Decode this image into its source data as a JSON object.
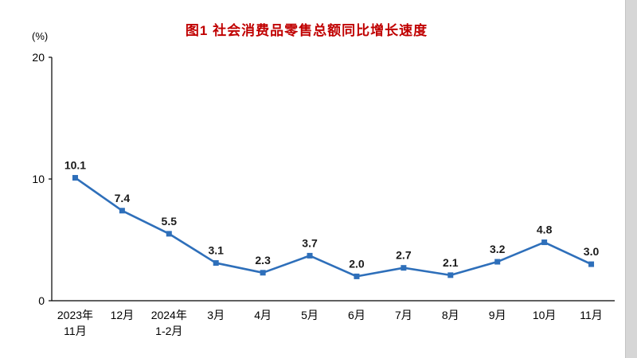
{
  "chart_data": {
    "type": "line",
    "title": "图1  社会消费品零售总额同比增长速度",
    "ylabel": "(%)",
    "xlabel": "",
    "ylim": [
      0,
      20
    ],
    "yticks": [
      0,
      10,
      20
    ],
    "grid": false,
    "legend": "none",
    "line_color": "#2e6fba",
    "marker": "square",
    "title_color": "#c00000",
    "categories": [
      [
        "2023年",
        "11月"
      ],
      [
        "12月"
      ],
      [
        "2024年",
        "1-2月"
      ],
      [
        "3月"
      ],
      [
        "4月"
      ],
      [
        "5月"
      ],
      [
        "6月"
      ],
      [
        "7月"
      ],
      [
        "8月"
      ],
      [
        "9月"
      ],
      [
        "10月"
      ],
      [
        "11月"
      ]
    ],
    "values": [
      10.1,
      7.4,
      5.5,
      3.1,
      2.3,
      3.7,
      2.0,
      2.7,
      2.1,
      3.2,
      4.8,
      3.0
    ]
  }
}
